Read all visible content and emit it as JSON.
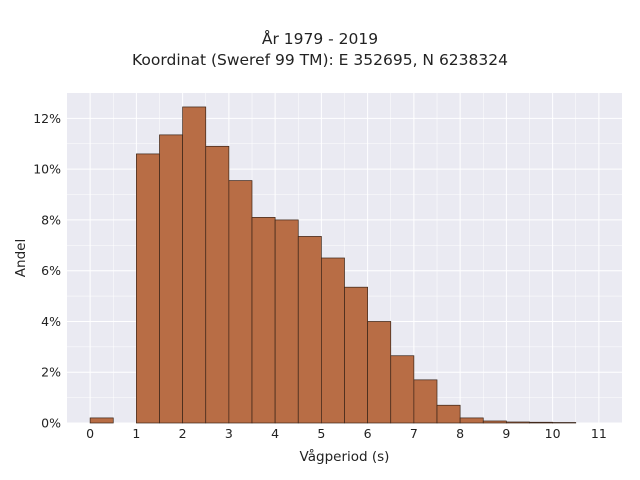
{
  "chart_data": {
    "type": "bar",
    "title_lines": [
      "År 1979 - 2019",
      "Koordinat (Sweref 99 TM): E 352695, N 6238324"
    ],
    "xlabel": "Vågperiod (s)",
    "ylabel": "Andel",
    "xlim": [
      -0.5,
      11.5
    ],
    "ylim": [
      0,
      13
    ],
    "x_ticks": [
      0,
      1,
      2,
      3,
      4,
      5,
      6,
      7,
      8,
      9,
      10,
      11
    ],
    "x_tick_labels": [
      "0",
      "1",
      "2",
      "3",
      "4",
      "5",
      "6",
      "7",
      "8",
      "9",
      "10",
      "11"
    ],
    "y_ticks": [
      0,
      2,
      4,
      6,
      8,
      10,
      12
    ],
    "y_tick_labels": [
      "0%",
      "2%",
      "4%",
      "6%",
      "8%",
      "10%",
      "12%"
    ],
    "bin_width": 0.5,
    "bins": [
      {
        "start": 0.0,
        "value": 0.2
      },
      {
        "start": 1.0,
        "value": 10.6
      },
      {
        "start": 1.5,
        "value": 11.35
      },
      {
        "start": 2.0,
        "value": 12.45
      },
      {
        "start": 2.5,
        "value": 10.9
      },
      {
        "start": 3.0,
        "value": 9.55
      },
      {
        "start": 3.5,
        "value": 8.1
      },
      {
        "start": 4.0,
        "value": 8.0
      },
      {
        "start": 4.5,
        "value": 7.35
      },
      {
        "start": 5.0,
        "value": 6.5
      },
      {
        "start": 5.5,
        "value": 5.35
      },
      {
        "start": 6.0,
        "value": 4.0
      },
      {
        "start": 6.5,
        "value": 2.65
      },
      {
        "start": 7.0,
        "value": 1.7
      },
      {
        "start": 7.5,
        "value": 0.7
      },
      {
        "start": 8.0,
        "value": 0.2
      },
      {
        "start": 8.5,
        "value": 0.08
      },
      {
        "start": 9.0,
        "value": 0.04
      },
      {
        "start": 9.5,
        "value": 0.03
      },
      {
        "start": 10.0,
        "value": 0.02
      }
    ],
    "grid": true,
    "bar_color": "#b86d45",
    "bar_edge_color": "#3a2418",
    "plot_background": "#eaeaf2",
    "grid_color": "#ffffff"
  }
}
